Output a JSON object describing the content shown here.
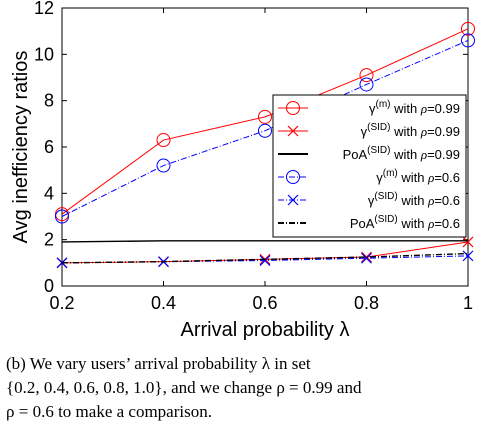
{
  "chart_data": {
    "type": "line",
    "xlabel": "Arrival probability λ",
    "ylabel": "Avg inefficiency ratios",
    "xlim": [
      0.2,
      1
    ],
    "ylim": [
      0,
      12
    ],
    "x": [
      0.2,
      0.4,
      0.6,
      0.8,
      1
    ],
    "x_ticks": [
      "0.2",
      "0.4",
      "0.6",
      "0.8",
      "1"
    ],
    "y_ticks": [
      "0",
      "2",
      "4",
      "6",
      "8",
      "10",
      "12"
    ],
    "grid": false,
    "legend_position": "right",
    "series": [
      {
        "name": "γ(m) with ρ=0.99",
        "sym": "γ",
        "sup": "(m)",
        "rho": "0.99",
        "color": "#ff0000",
        "marker": "circle",
        "dash": "solid",
        "values": [
          3.1,
          6.3,
          7.3,
          9.1,
          11.1
        ]
      },
      {
        "name": "γ(SID) with ρ=0.99",
        "sym": "γ",
        "sup": "(SID)",
        "rho": "0.99",
        "color": "#ff0000",
        "marker": "x",
        "dash": "solid",
        "values": [
          1.0,
          1.05,
          1.15,
          1.25,
          1.9
        ]
      },
      {
        "name": "PoA(SID) with ρ=0.99",
        "sym": "PoA",
        "sup": "(SID)",
        "rho": "0.99",
        "color": "#000000",
        "marker": "none",
        "dash": "solid",
        "values": [
          1.9,
          1.95,
          1.95,
          1.95,
          1.95
        ]
      },
      {
        "name": "γ(m) with ρ=0.6",
        "sym": "γ",
        "sup": "(m)",
        "rho": "0.6",
        "color": "#0000ff",
        "marker": "circle",
        "dash": "dashdot",
        "values": [
          3.0,
          5.2,
          6.7,
          8.7,
          10.6
        ]
      },
      {
        "name": "γ(SID) with ρ=0.6",
        "sym": "γ",
        "sup": "(SID)",
        "rho": "0.6",
        "color": "#0000ff",
        "marker": "x",
        "dash": "dashdot",
        "values": [
          1.0,
          1.05,
          1.1,
          1.2,
          1.3
        ]
      },
      {
        "name": "PoA(SID) with ρ=0.6",
        "sym": "PoA",
        "sup": "(SID)",
        "rho": "0.6",
        "color": "#000000",
        "marker": "none",
        "dash": "dashdot",
        "values": [
          1.0,
          1.05,
          1.15,
          1.25,
          1.4
        ]
      }
    ]
  },
  "caption": {
    "line1": "(b) We vary users’ arrival probability λ in set",
    "line2": "{0.2, 0.4, 0.6, 0.8, 1.0}, and we change ρ = 0.99 and",
    "line3": "ρ = 0.6 to make a comparison."
  }
}
